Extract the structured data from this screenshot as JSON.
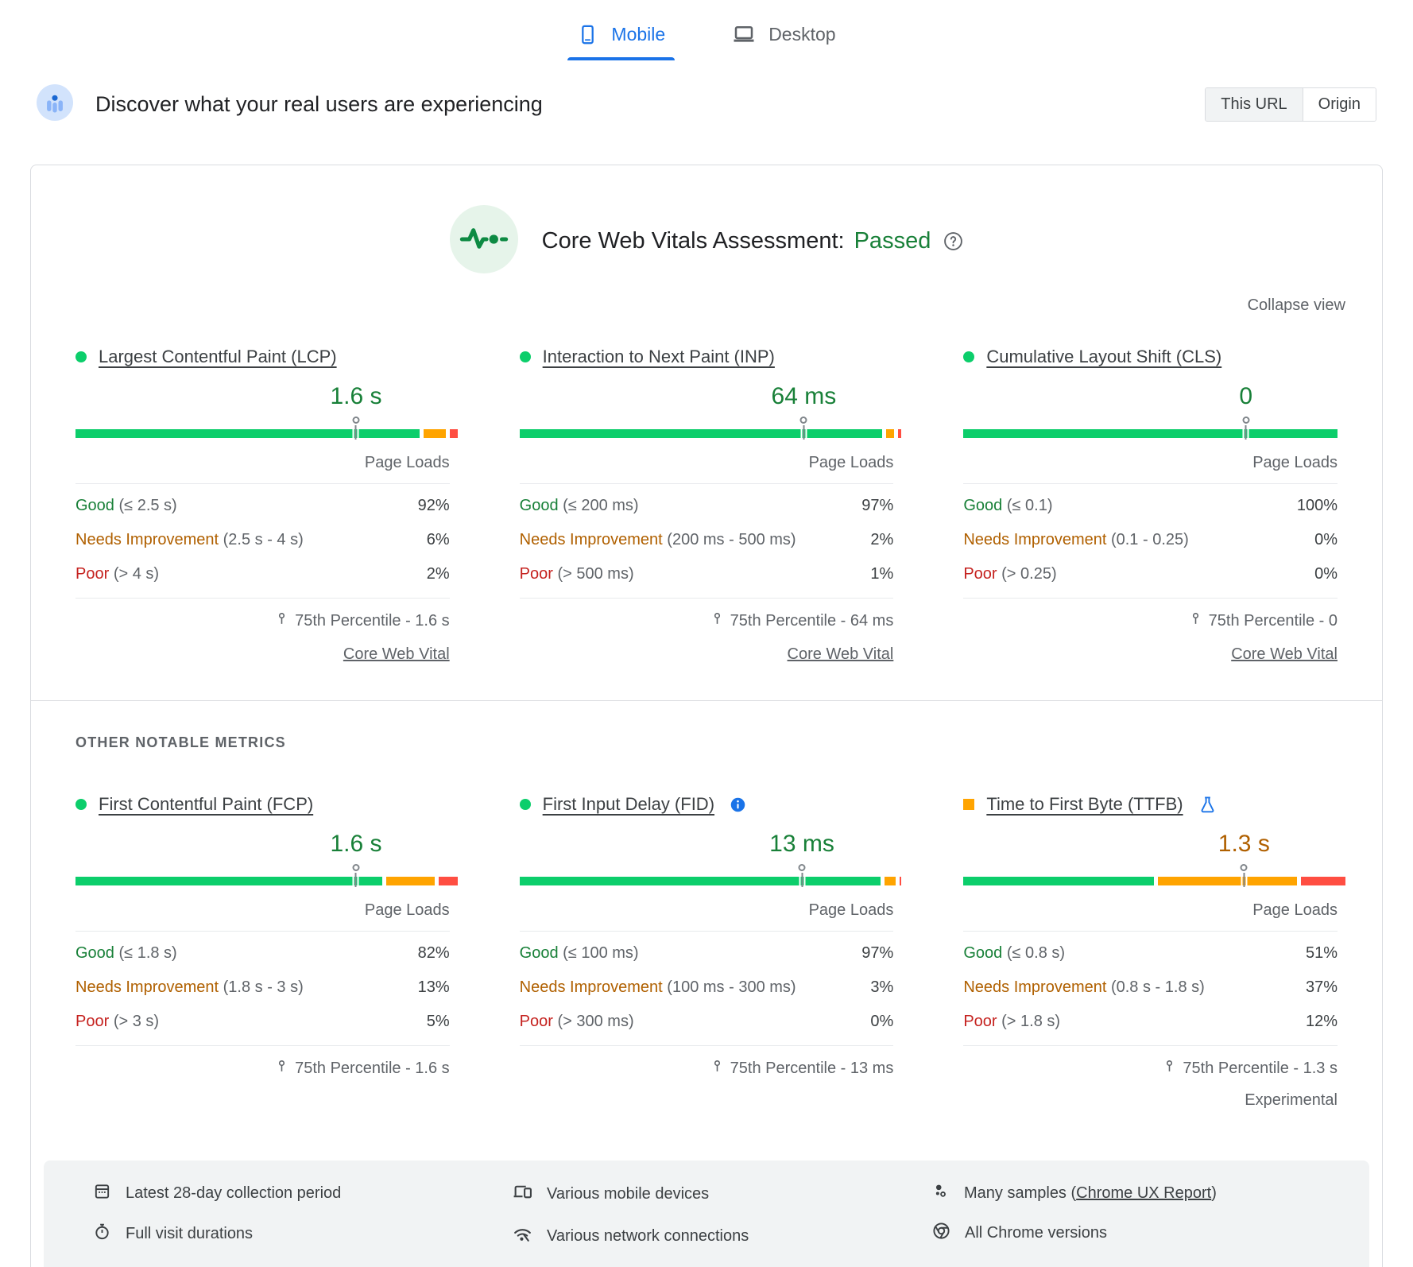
{
  "tabs": [
    {
      "label": "Mobile",
      "selected": true
    },
    {
      "label": "Desktop",
      "selected": false
    }
  ],
  "header": {
    "title": "Discover what your real users are experiencing",
    "scope_toggle": [
      {
        "label": "This URL",
        "selected": true
      },
      {
        "label": "Origin",
        "selected": false
      }
    ]
  },
  "assessment": {
    "title": "Core Web Vitals Assessment:",
    "result": "Passed",
    "collapse_label": "Collapse view"
  },
  "labels": {
    "page_loads": "Page Loads",
    "core_web_vital": "Core Web Vital",
    "experimental": "Experimental",
    "other_metrics": "OTHER NOTABLE METRICS"
  },
  "colors": {
    "bar_good": "#0cce6b",
    "bar_needs_improvement": "#ffa400",
    "bar_poor": "#ff4e42",
    "text_good": "#188038",
    "text_needs_improvement": "#b06000",
    "text_poor": "#c5221f",
    "accent_blue": "#1a73e8"
  },
  "metrics": [
    {
      "id": "lcp",
      "title": "Largest Contentful Paint (LCP)",
      "status": "good",
      "value": "1.6 s",
      "marker_percent": 75,
      "bar_segments": [
        92,
        6,
        2
      ],
      "rows": [
        {
          "label": "Good",
          "threshold": "(≤ 2.5 s)",
          "value": "92%"
        },
        {
          "label": "Needs Improvement",
          "threshold": "(2.5 s - 4 s)",
          "value": "6%"
        },
        {
          "label": "Poor",
          "threshold": "(> 4 s)",
          "value": "2%"
        }
      ],
      "percentile": "75th Percentile - 1.6 s"
    },
    {
      "id": "inp",
      "title": "Interaction to Next Paint (INP)",
      "status": "good",
      "value": "64 ms",
      "marker_percent": 76,
      "bar_segments": [
        97,
        2,
        1
      ],
      "rows": [
        {
          "label": "Good",
          "threshold": "(≤ 200 ms)",
          "value": "97%"
        },
        {
          "label": "Needs Improvement",
          "threshold": "(200 ms - 500 ms)",
          "value": "2%"
        },
        {
          "label": "Poor",
          "threshold": "(> 500 ms)",
          "value": "1%"
        }
      ],
      "percentile": "75th Percentile - 64 ms"
    },
    {
      "id": "cls",
      "title": "Cumulative Layout Shift (CLS)",
      "status": "good",
      "value": "0",
      "marker_percent": 75.5,
      "bar_segments": [
        100,
        0,
        0
      ],
      "rows": [
        {
          "label": "Good",
          "threshold": "(≤ 0.1)",
          "value": "100%"
        },
        {
          "label": "Needs Improvement",
          "threshold": "(0.1 - 0.25)",
          "value": "0%"
        },
        {
          "label": "Poor",
          "threshold": "(> 0.25)",
          "value": "0%"
        }
      ],
      "percentile": "75th Percentile - 0"
    },
    {
      "id": "fcp",
      "title": "First Contentful Paint (FCP)",
      "status": "good",
      "value": "1.6 s",
      "marker_percent": 75,
      "bar_segments": [
        82,
        13,
        5
      ],
      "rows": [
        {
          "label": "Good",
          "threshold": "(≤ 1.8 s)",
          "value": "82%"
        },
        {
          "label": "Needs Improvement",
          "threshold": "(1.8 s - 3 s)",
          "value": "13%"
        },
        {
          "label": "Poor",
          "threshold": "(> 3 s)",
          "value": "5%"
        }
      ],
      "percentile": "75th Percentile - 1.6 s"
    },
    {
      "id": "fid",
      "title": "First Input Delay (FID)",
      "status": "good",
      "value": "13 ms",
      "marker_percent": 75.5,
      "bar_segments": [
        96.5,
        3,
        0.5
      ],
      "rows": [
        {
          "label": "Good",
          "threshold": "(≤ 100 ms)",
          "value": "97%"
        },
        {
          "label": "Needs Improvement",
          "threshold": "(100 ms - 300 ms)",
          "value": "3%"
        },
        {
          "label": "Poor",
          "threshold": "(> 300 ms)",
          "value": "0%"
        }
      ],
      "percentile": "75th Percentile - 13 ms"
    },
    {
      "id": "ttfb",
      "title": "Time to First Byte (TTFB)",
      "status": "ni",
      "value": "1.3 s",
      "marker_percent": 75,
      "bar_segments": [
        51,
        37,
        12
      ],
      "rows": [
        {
          "label": "Good",
          "threshold": "(≤ 0.8 s)",
          "value": "51%"
        },
        {
          "label": "Needs Improvement",
          "threshold": "(0.8 s - 1.8 s)",
          "value": "37%"
        },
        {
          "label": "Poor",
          "threshold": "(> 1.8 s)",
          "value": "12%"
        }
      ],
      "percentile": "75th Percentile - 1.3 s"
    }
  ],
  "footer": {
    "collection_period": "Latest 28-day collection period",
    "visit_durations": "Full visit durations",
    "devices": "Various mobile devices",
    "connections": "Various network connections",
    "samples_prefix": "Many samples (",
    "samples_link": "Chrome UX Report",
    "samples_suffix": ")",
    "chrome_versions": "All Chrome versions"
  }
}
